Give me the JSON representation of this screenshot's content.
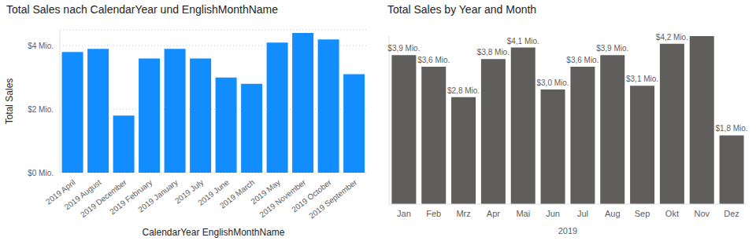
{
  "chart_data": [
    {
      "type": "bar",
      "title": "Total Sales nach CalendarYear und EnglishMonthName",
      "categories": [
        "2019 April",
        "2019 August",
        "2019 December",
        "2019 February",
        "2019 January",
        "2019 July",
        "2019 June",
        "2019 March",
        "2019 May",
        "2019 November",
        "2019 October",
        "2019 September"
      ],
      "values": [
        3.8,
        3.9,
        1.8,
        3.6,
        3.9,
        3.6,
        3.0,
        2.8,
        4.1,
        4.4,
        4.2,
        3.1
      ],
      "color": "#118DFF",
      "xlabel": "CalendarYear EnglishMonthName",
      "ylabel": "Total Sales",
      "ylim": [
        0,
        4.5
      ],
      "yticks": [
        {
          "value": 0,
          "label": "$0 Mio."
        },
        {
          "value": 2,
          "label": "$2 Mio."
        },
        {
          "value": 4,
          "label": "$4 Mio."
        }
      ],
      "grid": true
    },
    {
      "type": "bar",
      "title": "Total Sales by Year and Month",
      "categories": [
        "Jan",
        "Feb",
        "Mrz",
        "Apr",
        "Mai",
        "Jun",
        "Jul",
        "Aug",
        "Sep",
        "Okt",
        "Nov",
        "Dez"
      ],
      "xlabel": "2019",
      "values": [
        3.9,
        3.6,
        2.8,
        3.8,
        4.1,
        3.0,
        3.6,
        3.9,
        3.1,
        4.2,
        4.4,
        1.8
      ],
      "value_labels": [
        "$3,9 Mio.",
        "$3,6 Mio.",
        "$2,8 Mio.",
        "$3,8 Mio.",
        "$4,1 Mio.",
        "$3,0 Mio.",
        "$3,6 Mio.",
        "$3,9 Mio.",
        "$3,1 Mio.",
        "$4,2 Mio.",
        null,
        "$1,8 Mio."
      ],
      "data_labels": true,
      "color": "#605E5C",
      "ylim": [
        0,
        4.4
      ],
      "grid": false,
      "tick_labels": "x"
    }
  ]
}
